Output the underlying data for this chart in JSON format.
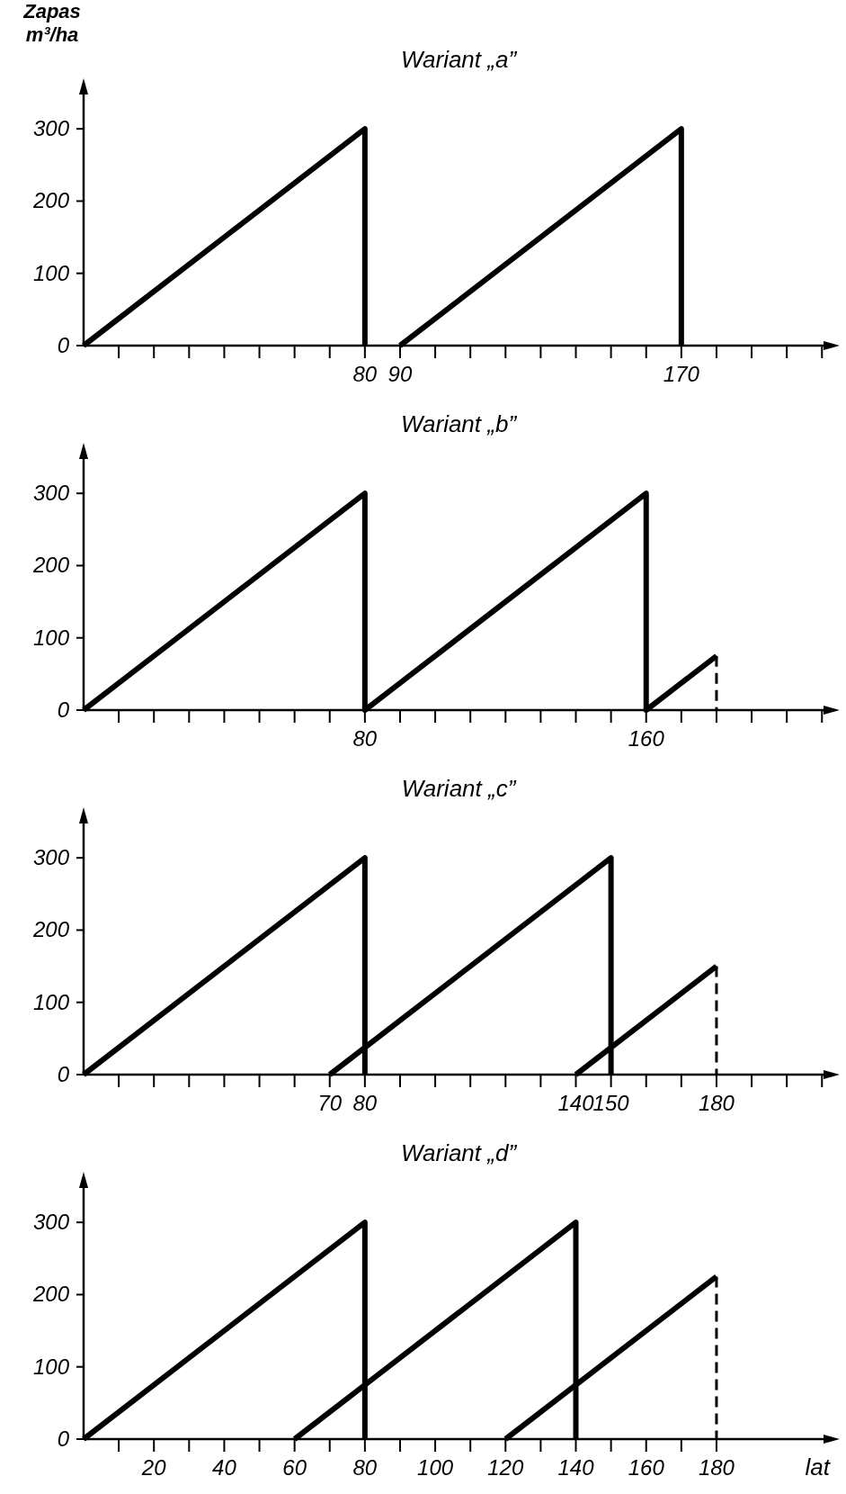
{
  "chart_data": [
    {
      "type": "line",
      "title": "Wariant „a”",
      "ylabel": "Zapas m³/ha",
      "xlim": [
        0,
        213
      ],
      "ylim": [
        0,
        360
      ],
      "xticks": [
        {
          "value": 10,
          "label": null
        },
        {
          "value": 20,
          "label": null
        },
        {
          "value": 30,
          "label": null
        },
        {
          "value": 40,
          "label": null
        },
        {
          "value": 50,
          "label": null
        },
        {
          "value": 60,
          "label": null
        },
        {
          "value": 70,
          "label": null
        },
        80,
        90,
        {
          "value": 100,
          "label": null
        },
        {
          "value": 110,
          "label": null
        },
        {
          "value": 120,
          "label": null
        },
        {
          "value": 130,
          "label": null
        },
        {
          "value": 140,
          "label": null
        },
        {
          "value": 150,
          "label": null
        },
        {
          "value": 160,
          "label": null
        },
        170,
        {
          "value": 180,
          "label": null
        },
        {
          "value": 190,
          "label": null
        },
        {
          "value": 200,
          "label": null
        },
        {
          "value": 210,
          "label": null
        }
      ],
      "yticks": [
        0,
        100,
        200,
        300
      ],
      "series": [
        {
          "color": "#000000",
          "line_style": "solid",
          "x": [
            0,
            80,
            80
          ],
          "values": [
            0,
            300,
            0
          ]
        },
        {
          "color": "#000000",
          "line_style": "solid",
          "x": [
            90,
            170,
            170
          ],
          "values": [
            0,
            300,
            0
          ]
        }
      ]
    },
    {
      "type": "line",
      "title": "Wariant „b”",
      "xlim": [
        0,
        213
      ],
      "ylim": [
        0,
        360
      ],
      "xticks": [
        {
          "value": 10,
          "label": null
        },
        {
          "value": 20,
          "label": null
        },
        {
          "value": 30,
          "label": null
        },
        {
          "value": 40,
          "label": null
        },
        {
          "value": 50,
          "label": null
        },
        {
          "value": 60,
          "label": null
        },
        {
          "value": 70,
          "label": null
        },
        80,
        {
          "value": 90,
          "label": null
        },
        {
          "value": 100,
          "label": null
        },
        {
          "value": 110,
          "label": null
        },
        {
          "value": 120,
          "label": null
        },
        {
          "value": 130,
          "label": null
        },
        {
          "value": 140,
          "label": null
        },
        {
          "value": 150,
          "label": null
        },
        160,
        {
          "value": 170,
          "label": null
        },
        {
          "value": 180,
          "label": null
        },
        {
          "value": 190,
          "label": null
        },
        {
          "value": 200,
          "label": null
        },
        {
          "value": 210,
          "label": null
        }
      ],
      "yticks": [
        0,
        100,
        200,
        300
      ],
      "series": [
        {
          "color": "#000000",
          "line_style": "solid",
          "x": [
            0,
            80,
            80,
            160,
            160,
            180
          ],
          "values": [
            0,
            300,
            0,
            300,
            0,
            75
          ]
        },
        {
          "color": "#000000",
          "line_style": "dashed",
          "x": [
            180,
            180
          ],
          "values": [
            75,
            0
          ]
        }
      ]
    },
    {
      "type": "line",
      "title": "Wariant „c”",
      "xlim": [
        0,
        213
      ],
      "ylim": [
        0,
        360
      ],
      "xticks": [
        {
          "value": 10,
          "label": null
        },
        {
          "value": 20,
          "label": null
        },
        {
          "value": 30,
          "label": null
        },
        {
          "value": 40,
          "label": null
        },
        {
          "value": 50,
          "label": null
        },
        {
          "value": 60,
          "label": null
        },
        70,
        80,
        {
          "value": 90,
          "label": null
        },
        {
          "value": 100,
          "label": null
        },
        {
          "value": 110,
          "label": null
        },
        {
          "value": 120,
          "label": null
        },
        {
          "value": 130,
          "label": null
        },
        140,
        150,
        {
          "value": 160,
          "label": null
        },
        {
          "value": 170,
          "label": null
        },
        180,
        {
          "value": 190,
          "label": null
        },
        {
          "value": 200,
          "label": null
        },
        {
          "value": 210,
          "label": null
        }
      ],
      "yticks": [
        0,
        100,
        200,
        300
      ],
      "series": [
        {
          "color": "#000000",
          "line_style": "solid",
          "x": [
            0,
            80,
            80
          ],
          "values": [
            0,
            300,
            0
          ]
        },
        {
          "color": "#000000",
          "line_style": "solid",
          "x": [
            70,
            150,
            150
          ],
          "values": [
            0,
            300,
            0
          ]
        },
        {
          "color": "#000000",
          "line_style": "solid",
          "x": [
            140,
            180
          ],
          "values": [
            0,
            150
          ]
        },
        {
          "color": "#000000",
          "line_style": "dashed",
          "x": [
            180,
            180
          ],
          "values": [
            150,
            0
          ]
        }
      ]
    },
    {
      "type": "line",
      "title": "Wariant „d”",
      "xlabel": "lat",
      "xlim": [
        0,
        213
      ],
      "ylim": [
        0,
        360
      ],
      "xticks": [
        {
          "value": 10,
          "label": null
        },
        20,
        {
          "value": 30,
          "label": null
        },
        40,
        {
          "value": 50,
          "label": null
        },
        60,
        {
          "value": 70,
          "label": null
        },
        80,
        {
          "value": 90,
          "label": null
        },
        100,
        {
          "value": 110,
          "label": null
        },
        120,
        {
          "value": 130,
          "label": null
        },
        140,
        {
          "value": 150,
          "label": null
        },
        160,
        {
          "value": 170,
          "label": null
        },
        180
      ],
      "yticks": [
        0,
        100,
        200,
        300
      ],
      "series": [
        {
          "color": "#000000",
          "line_style": "solid",
          "x": [
            0,
            80,
            80
          ],
          "values": [
            0,
            300,
            0
          ]
        },
        {
          "color": "#000000",
          "line_style": "solid",
          "x": [
            60,
            140,
            140
          ],
          "values": [
            0,
            300,
            0
          ]
        },
        {
          "color": "#000000",
          "line_style": "solid",
          "x": [
            120,
            180
          ],
          "values": [
            0,
            225
          ]
        },
        {
          "color": "#000000",
          "line_style": "dashed",
          "x": [
            180,
            180
          ],
          "values": [
            225,
            0
          ]
        }
      ]
    }
  ]
}
